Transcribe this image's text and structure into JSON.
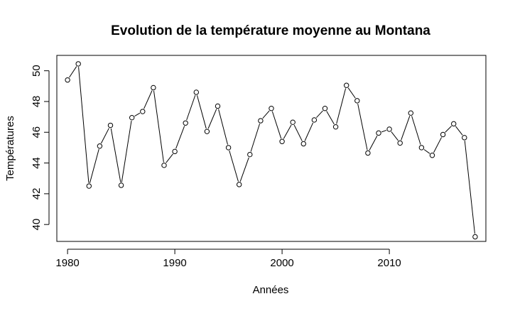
{
  "chart_data": {
    "type": "line",
    "markers": "open-circle",
    "title": "Evolution de la température moyenne au Montana",
    "xlabel": "Années",
    "ylabel": "Températures",
    "xlim": [
      1979,
      2019
    ],
    "ylim": [
      38.9,
      51.0
    ],
    "xticks": [
      1980,
      1990,
      2000,
      2010
    ],
    "yticks": [
      40,
      42,
      44,
      46,
      48,
      50
    ],
    "grid": false,
    "line_color": "#000000",
    "series": [
      {
        "x": [
          1980,
          1981,
          1982,
          1983,
          1984,
          1985,
          1986,
          1987,
          1988,
          1989,
          1990,
          1991,
          1992,
          1993,
          1994,
          1995,
          1996,
          1997,
          1998,
          1999,
          2000,
          2001,
          2002,
          2003,
          2004,
          2005,
          2006,
          2007,
          2008,
          2009,
          2010,
          2011,
          2012,
          2013,
          2014,
          2015,
          2016,
          2017,
          2018
        ],
        "y": [
          49.4,
          50.45,
          42.5,
          45.1,
          46.45,
          42.55,
          46.95,
          47.35,
          48.9,
          43.85,
          44.75,
          46.6,
          48.6,
          46.05,
          47.7,
          45.0,
          42.6,
          44.55,
          46.75,
          47.55,
          45.4,
          46.65,
          45.25,
          46.8,
          47.55,
          46.35,
          49.05,
          48.05,
          44.65,
          45.95,
          46.2,
          45.3,
          47.25,
          45.0,
          44.5,
          45.85,
          46.55,
          45.65,
          39.2
        ]
      }
    ]
  }
}
